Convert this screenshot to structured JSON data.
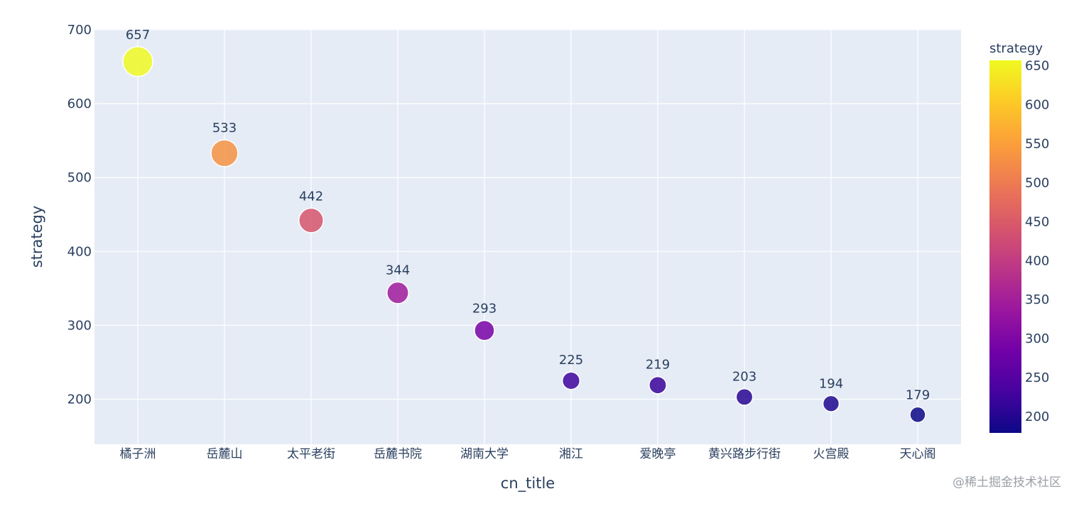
{
  "chart_data": {
    "type": "scatter",
    "xlabel": "cn_title",
    "ylabel": "strategy",
    "categories": [
      "橘子洲",
      "岳麓山",
      "太平老街",
      "岳麓书院",
      "湖南大学",
      "湘江",
      "爱晚亭",
      "黄兴路步行街",
      "火宫殿",
      "天心阁"
    ],
    "values": [
      657,
      533,
      442,
      344,
      293,
      225,
      219,
      203,
      194,
      179
    ],
    "data_labels": [
      "657",
      "533",
      "442",
      "344",
      "293",
      "225",
      "219",
      "203",
      "194",
      "179"
    ],
    "size_by": "strategy",
    "color_by": "strategy",
    "ylim": [
      139,
      701
    ],
    "yticks": [
      200,
      300,
      400,
      500,
      600,
      700
    ],
    "ytick_labels": [
      "200",
      "300",
      "400",
      "500",
      "600",
      "700"
    ],
    "grid": true,
    "background_color": "#e5ecf6",
    "colorbar": {
      "title": "strategy",
      "range": [
        179,
        657
      ],
      "ticks": [
        200,
        250,
        300,
        350,
        400,
        450,
        500,
        550,
        600,
        650
      ],
      "tick_labels": [
        "200",
        "250",
        "300",
        "350",
        "400",
        "450",
        "500",
        "550",
        "600",
        "650"
      ],
      "colorscale": [
        "#0d0887",
        "#46039f",
        "#7201a8",
        "#9c179e",
        "#bd3786",
        "#d8576b",
        "#ed7953",
        "#fb9f3a",
        "#fdca26",
        "#f0f921"
      ]
    }
  },
  "watermark": "@稀土掘金技术社区"
}
